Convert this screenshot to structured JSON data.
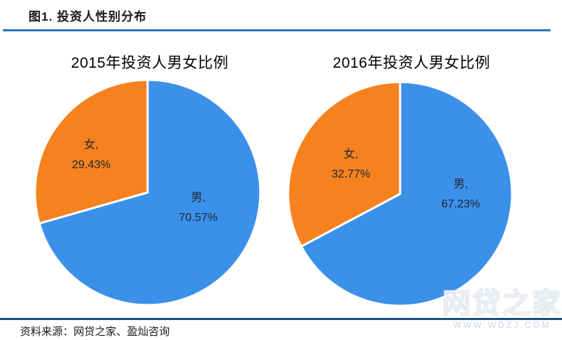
{
  "header": {
    "figure_label": "图1. 投资人性别分布"
  },
  "rules": {
    "top_color": "#2E74B5",
    "bottom_color": "#1F4E79"
  },
  "footer": {
    "source": "资料来源：网贷之家、盈灿咨询"
  },
  "watermark": {
    "brand": "网贷之家",
    "url": "WWW.WDZJ.COM"
  },
  "colors": {
    "male_slice": "#3B90EA",
    "female_slice": "#F5821F",
    "slice_border": "#FFFFFF"
  },
  "chart_data": [
    {
      "type": "pie",
      "title": "2015年投资人男女比例",
      "start_angle_deg": 0,
      "direction": "clockwise",
      "legend_position": "none",
      "slices": [
        {
          "name": "male",
          "label_text": "男,",
          "pct_text": "70.57%",
          "value": 70.57,
          "color": "#3B90EA"
        },
        {
          "name": "female",
          "label_text": "女,",
          "pct_text": "29.43%",
          "value": 29.43,
          "color": "#F5821F"
        }
      ]
    },
    {
      "type": "pie",
      "title": "2016年投资人男女比例",
      "start_angle_deg": 0,
      "direction": "clockwise",
      "legend_position": "none",
      "slices": [
        {
          "name": "male",
          "label_text": "男,",
          "pct_text": "67.23%",
          "value": 67.23,
          "color": "#3B90EA"
        },
        {
          "name": "female",
          "label_text": "女,",
          "pct_text": "32.77%",
          "value": 32.77,
          "color": "#F5821F"
        }
      ]
    }
  ]
}
